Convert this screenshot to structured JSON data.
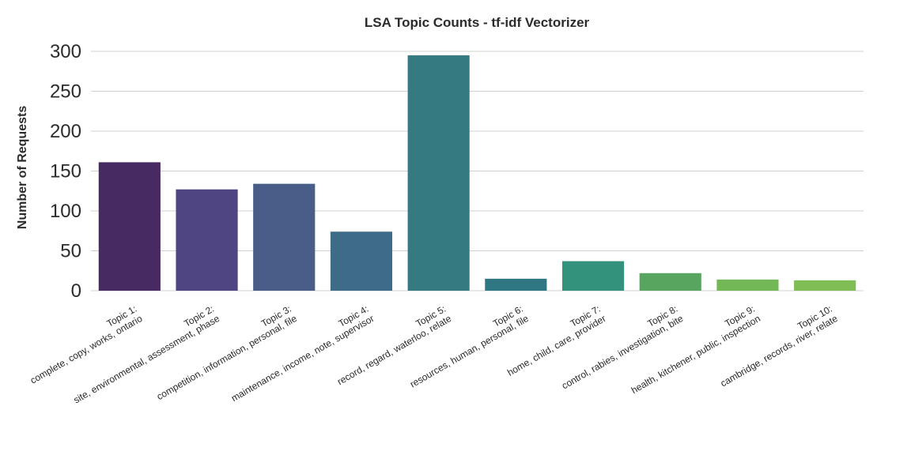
{
  "chart_data": {
    "type": "bar",
    "title": "LSA Topic Counts - tf-idf Vectorizer",
    "xlabel": "",
    "ylabel": "Number of Requests",
    "ylim": [
      0,
      300
    ],
    "yticks": [
      0,
      50,
      100,
      150,
      200,
      250,
      300
    ],
    "grid": "horizontal",
    "categories": [
      [
        "Topic 1:",
        "complete, copy, works, ontario"
      ],
      [
        "Topic 2:",
        "site, environmental, assessment, phase"
      ],
      [
        "Topic 3:",
        "competition, information, personal, file"
      ],
      [
        "Topic 4:",
        "maintenance, income, note, supervisor"
      ],
      [
        "Topic 5:",
        "record, regard, waterloo, relate"
      ],
      [
        "Topic 6:",
        "resources, human, personal, file"
      ],
      [
        "Topic 7:",
        "home, child, care, provider"
      ],
      [
        "Topic 8:",
        "control, rabies, investigation, bite"
      ],
      [
        "Topic 9:",
        "health, kitchener, public, inspection"
      ],
      [
        "Topic 10:",
        "cambridge, records, river, relate"
      ]
    ],
    "values": [
      161,
      127,
      134,
      74,
      295,
      15,
      37,
      22,
      14,
      13
    ],
    "colors": [
      "#482a62",
      "#4e4582",
      "#485d87",
      "#3d6b88",
      "#357a80",
      "#2f7783",
      "#33927c",
      "#57a55f",
      "#73b857",
      "#7fbe55"
    ]
  }
}
